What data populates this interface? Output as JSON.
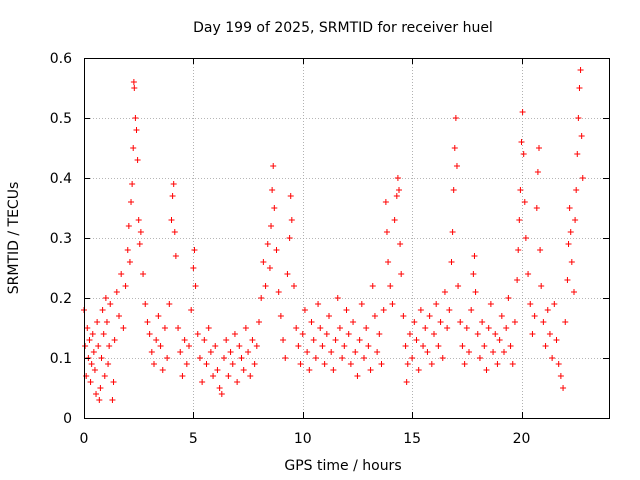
{
  "chart_data": {
    "type": "scatter",
    "title": "Day 199 of 2025, SRMTID for receiver huel",
    "xlabel": "GPS time / hours",
    "ylabel": "SRMTID / TECUs",
    "xlim": [
      0,
      24
    ],
    "ylim": [
      0,
      0.6
    ],
    "xticks": [
      {
        "value": 0,
        "label": "0"
      },
      {
        "value": 5,
        "label": "5"
      },
      {
        "value": 10,
        "label": "10"
      },
      {
        "value": 15,
        "label": "15"
      },
      {
        "value": 20,
        "label": "20"
      }
    ],
    "yticks": [
      {
        "value": 0,
        "label": "0"
      },
      {
        "value": 0.1,
        "label": "0.1"
      },
      {
        "value": 0.2,
        "label": "0.2"
      },
      {
        "value": 0.3,
        "label": "0.3"
      },
      {
        "value": 0.4,
        "label": "0.4"
      },
      {
        "value": 0.5,
        "label": "0.5"
      },
      {
        "value": 0.6,
        "label": "0.6"
      }
    ],
    "grid": true,
    "marker": "+",
    "marker_color": "#ff0000",
    "series": [
      {
        "name": "SRMTID",
        "points": [
          [
            0.0,
            0.18
          ],
          [
            0.05,
            0.12
          ],
          [
            0.1,
            0.07
          ],
          [
            0.15,
            0.15
          ],
          [
            0.2,
            0.1
          ],
          [
            0.25,
            0.13
          ],
          [
            0.3,
            0.06
          ],
          [
            0.35,
            0.09
          ],
          [
            0.4,
            0.14
          ],
          [
            0.45,
            0.11
          ],
          [
            0.5,
            0.08
          ],
          [
            0.55,
            0.04
          ],
          [
            0.6,
            0.16
          ],
          [
            0.65,
            0.12
          ],
          [
            0.7,
            0.03
          ],
          [
            0.75,
            0.05
          ],
          [
            0.8,
            0.1
          ],
          [
            0.85,
            0.18
          ],
          [
            0.9,
            0.14
          ],
          [
            0.95,
            0.07
          ],
          [
            1.0,
            0.2
          ],
          [
            1.05,
            0.16
          ],
          [
            1.1,
            0.09
          ],
          [
            1.15,
            0.12
          ],
          [
            1.2,
            0.19
          ],
          [
            1.3,
            0.03
          ],
          [
            1.35,
            0.06
          ],
          [
            1.4,
            0.13
          ],
          [
            1.5,
            0.21
          ],
          [
            1.6,
            0.17
          ],
          [
            1.7,
            0.24
          ],
          [
            1.8,
            0.15
          ],
          [
            1.9,
            0.22
          ],
          [
            2.0,
            0.28
          ],
          [
            2.05,
            0.32
          ],
          [
            2.1,
            0.26
          ],
          [
            2.15,
            0.36
          ],
          [
            2.2,
            0.39
          ],
          [
            2.25,
            0.45
          ],
          [
            2.28,
            0.56
          ],
          [
            2.3,
            0.55
          ],
          [
            2.35,
            0.5
          ],
          [
            2.4,
            0.48
          ],
          [
            2.45,
            0.43
          ],
          [
            2.5,
            0.33
          ],
          [
            2.55,
            0.29
          ],
          [
            2.6,
            0.31
          ],
          [
            2.7,
            0.24
          ],
          [
            2.8,
            0.19
          ],
          [
            2.9,
            0.16
          ],
          [
            3.0,
            0.14
          ],
          [
            3.1,
            0.11
          ],
          [
            3.2,
            0.09
          ],
          [
            3.3,
            0.13
          ],
          [
            3.4,
            0.17
          ],
          [
            3.5,
            0.12
          ],
          [
            3.6,
            0.08
          ],
          [
            3.7,
            0.15
          ],
          [
            3.8,
            0.1
          ],
          [
            3.9,
            0.19
          ],
          [
            4.0,
            0.33
          ],
          [
            4.05,
            0.37
          ],
          [
            4.1,
            0.39
          ],
          [
            4.15,
            0.31
          ],
          [
            4.2,
            0.27
          ],
          [
            4.3,
            0.15
          ],
          [
            4.4,
            0.11
          ],
          [
            4.5,
            0.07
          ],
          [
            4.6,
            0.13
          ],
          [
            4.7,
            0.09
          ],
          [
            4.8,
            0.12
          ],
          [
            4.9,
            0.18
          ],
          [
            5.0,
            0.25
          ],
          [
            5.05,
            0.28
          ],
          [
            5.1,
            0.22
          ],
          [
            5.2,
            0.14
          ],
          [
            5.3,
            0.1
          ],
          [
            5.4,
            0.06
          ],
          [
            5.5,
            0.13
          ],
          [
            5.6,
            0.09
          ],
          [
            5.7,
            0.15
          ],
          [
            5.8,
            0.11
          ],
          [
            5.9,
            0.07
          ],
          [
            6.0,
            0.12
          ],
          [
            6.1,
            0.08
          ],
          [
            6.2,
            0.05
          ],
          [
            6.3,
            0.04
          ],
          [
            6.4,
            0.1
          ],
          [
            6.5,
            0.13
          ],
          [
            6.6,
            0.07
          ],
          [
            6.7,
            0.11
          ],
          [
            6.8,
            0.09
          ],
          [
            6.9,
            0.14
          ],
          [
            7.0,
            0.06
          ],
          [
            7.1,
            0.12
          ],
          [
            7.2,
            0.1
          ],
          [
            7.3,
            0.08
          ],
          [
            7.4,
            0.15
          ],
          [
            7.5,
            0.11
          ],
          [
            7.6,
            0.07
          ],
          [
            7.7,
            0.13
          ],
          [
            7.8,
            0.09
          ],
          [
            7.9,
            0.12
          ],
          [
            8.0,
            0.16
          ],
          [
            8.1,
            0.2
          ],
          [
            8.2,
            0.26
          ],
          [
            8.3,
            0.22
          ],
          [
            8.4,
            0.29
          ],
          [
            8.5,
            0.25
          ],
          [
            8.55,
            0.32
          ],
          [
            8.6,
            0.38
          ],
          [
            8.65,
            0.42
          ],
          [
            8.7,
            0.35
          ],
          [
            8.8,
            0.28
          ],
          [
            8.9,
            0.21
          ],
          [
            9.0,
            0.17
          ],
          [
            9.1,
            0.13
          ],
          [
            9.2,
            0.1
          ],
          [
            9.3,
            0.24
          ],
          [
            9.4,
            0.3
          ],
          [
            9.45,
            0.37
          ],
          [
            9.5,
            0.33
          ],
          [
            9.6,
            0.22
          ],
          [
            9.7,
            0.15
          ],
          [
            9.8,
            0.12
          ],
          [
            9.9,
            0.09
          ],
          [
            10.0,
            0.14
          ],
          [
            10.1,
            0.18
          ],
          [
            10.2,
            0.11
          ],
          [
            10.3,
            0.08
          ],
          [
            10.4,
            0.16
          ],
          [
            10.5,
            0.13
          ],
          [
            10.6,
            0.1
          ],
          [
            10.7,
            0.19
          ],
          [
            10.8,
            0.15
          ],
          [
            10.9,
            0.12
          ],
          [
            11.0,
            0.09
          ],
          [
            11.1,
            0.14
          ],
          [
            11.2,
            0.17
          ],
          [
            11.3,
            0.11
          ],
          [
            11.4,
            0.08
          ],
          [
            11.5,
            0.13
          ],
          [
            11.6,
            0.2
          ],
          [
            11.7,
            0.15
          ],
          [
            11.8,
            0.1
          ],
          [
            11.9,
            0.12
          ],
          [
            12.0,
            0.18
          ],
          [
            12.1,
            0.14
          ],
          [
            12.2,
            0.09
          ],
          [
            12.3,
            0.16
          ],
          [
            12.4,
            0.11
          ],
          [
            12.5,
            0.07
          ],
          [
            12.6,
            0.13
          ],
          [
            12.7,
            0.19
          ],
          [
            12.8,
            0.1
          ],
          [
            12.9,
            0.15
          ],
          [
            13.0,
            0.12
          ],
          [
            13.1,
            0.08
          ],
          [
            13.2,
            0.22
          ],
          [
            13.3,
            0.17
          ],
          [
            13.4,
            0.11
          ],
          [
            13.5,
            0.14
          ],
          [
            13.6,
            0.09
          ],
          [
            13.7,
            0.18
          ],
          [
            13.8,
            0.36
          ],
          [
            13.85,
            0.31
          ],
          [
            13.9,
            0.26
          ],
          [
            14.0,
            0.22
          ],
          [
            14.1,
            0.19
          ],
          [
            14.2,
            0.33
          ],
          [
            14.3,
            0.37
          ],
          [
            14.35,
            0.4
          ],
          [
            14.4,
            0.38
          ],
          [
            14.45,
            0.29
          ],
          [
            14.5,
            0.24
          ],
          [
            14.6,
            0.17
          ],
          [
            14.7,
            0.12
          ],
          [
            14.75,
            0.06
          ],
          [
            14.8,
            0.09
          ],
          [
            14.9,
            0.14
          ],
          [
            15.0,
            0.1
          ],
          [
            15.1,
            0.16
          ],
          [
            15.2,
            0.13
          ],
          [
            15.3,
            0.08
          ],
          [
            15.4,
            0.18
          ],
          [
            15.5,
            0.12
          ],
          [
            15.6,
            0.15
          ],
          [
            15.7,
            0.11
          ],
          [
            15.8,
            0.17
          ],
          [
            15.9,
            0.09
          ],
          [
            16.0,
            0.14
          ],
          [
            16.1,
            0.19
          ],
          [
            16.2,
            0.12
          ],
          [
            16.3,
            0.16
          ],
          [
            16.4,
            0.1
          ],
          [
            16.5,
            0.21
          ],
          [
            16.6,
            0.15
          ],
          [
            16.7,
            0.18
          ],
          [
            16.8,
            0.26
          ],
          [
            16.85,
            0.31
          ],
          [
            16.9,
            0.38
          ],
          [
            16.95,
            0.45
          ],
          [
            17.0,
            0.5
          ],
          [
            17.05,
            0.42
          ],
          [
            17.1,
            0.22
          ],
          [
            17.2,
            0.16
          ],
          [
            17.3,
            0.12
          ],
          [
            17.4,
            0.09
          ],
          [
            17.5,
            0.15
          ],
          [
            17.6,
            0.11
          ],
          [
            17.7,
            0.18
          ],
          [
            17.8,
            0.24
          ],
          [
            17.85,
            0.27
          ],
          [
            17.9,
            0.21
          ],
          [
            18.0,
            0.14
          ],
          [
            18.1,
            0.1
          ],
          [
            18.2,
            0.16
          ],
          [
            18.3,
            0.12
          ],
          [
            18.4,
            0.08
          ],
          [
            18.5,
            0.15
          ],
          [
            18.6,
            0.19
          ],
          [
            18.7,
            0.11
          ],
          [
            18.8,
            0.14
          ],
          [
            18.9,
            0.09
          ],
          [
            19.0,
            0.13
          ],
          [
            19.1,
            0.17
          ],
          [
            19.2,
            0.11
          ],
          [
            19.3,
            0.15
          ],
          [
            19.4,
            0.2
          ],
          [
            19.5,
            0.12
          ],
          [
            19.6,
            0.09
          ],
          [
            19.7,
            0.16
          ],
          [
            19.8,
            0.23
          ],
          [
            19.85,
            0.28
          ],
          [
            19.9,
            0.33
          ],
          [
            19.95,
            0.38
          ],
          [
            20.0,
            0.46
          ],
          [
            20.05,
            0.51
          ],
          [
            20.1,
            0.44
          ],
          [
            20.15,
            0.36
          ],
          [
            20.2,
            0.3
          ],
          [
            20.3,
            0.24
          ],
          [
            20.4,
            0.19
          ],
          [
            20.5,
            0.14
          ],
          [
            20.6,
            0.17
          ],
          [
            20.7,
            0.35
          ],
          [
            20.75,
            0.41
          ],
          [
            20.8,
            0.45
          ],
          [
            20.85,
            0.28
          ],
          [
            20.9,
            0.22
          ],
          [
            21.0,
            0.16
          ],
          [
            21.1,
            0.12
          ],
          [
            21.2,
            0.18
          ],
          [
            21.3,
            0.14
          ],
          [
            21.4,
            0.1
          ],
          [
            21.5,
            0.19
          ],
          [
            21.6,
            0.13
          ],
          [
            21.7,
            0.09
          ],
          [
            21.8,
            0.07
          ],
          [
            21.9,
            0.05
          ],
          [
            22.0,
            0.16
          ],
          [
            22.1,
            0.23
          ],
          [
            22.15,
            0.29
          ],
          [
            22.2,
            0.35
          ],
          [
            22.25,
            0.31
          ],
          [
            22.3,
            0.26
          ],
          [
            22.4,
            0.21
          ],
          [
            22.45,
            0.33
          ],
          [
            22.5,
            0.38
          ],
          [
            22.55,
            0.44
          ],
          [
            22.6,
            0.5
          ],
          [
            22.65,
            0.55
          ],
          [
            22.7,
            0.58
          ],
          [
            22.75,
            0.47
          ],
          [
            22.8,
            0.4
          ]
        ]
      }
    ]
  }
}
